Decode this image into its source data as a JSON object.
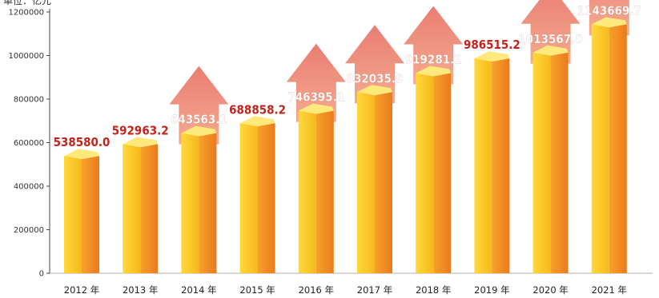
{
  "unit_label": "单位：亿元",
  "colors": {
    "axis": "#444444",
    "bar_front_light": "#ffd83a",
    "bar_front_dark": "#f6b81c",
    "bar_side_light": "#f7a12a",
    "bar_side_dark": "#ea7b1e",
    "bar_top": "#ffe97a",
    "arrow_light": "#f29c7c",
    "arrow_dark": "#e6665a",
    "label_plain": "#c4231b",
    "label_on_arrow": "#ffffff"
  },
  "chart_data": {
    "type": "bar",
    "title": "",
    "xlabel": "",
    "ylabel": "单位：亿元",
    "categories": [
      "2012 年",
      "2013 年",
      "2014 年",
      "2015 年",
      "2016 年",
      "2017 年",
      "2018 年",
      "2019 年",
      "2020 年",
      "2021 年"
    ],
    "values": [
      538580.0,
      592963.2,
      643563.1,
      688858.2,
      746395.1,
      832035.9,
      919281.1,
      986515.2,
      1013567.0,
      1143669.7
    ],
    "value_labels": [
      "538580.0",
      "592963.2",
      "643563.1",
      "688858.2",
      "746395.1",
      "832035.9",
      "919281.1",
      "986515.2",
      "1013567.0",
      "1143669.7"
    ],
    "label_on_arrow": [
      false,
      false,
      true,
      false,
      true,
      true,
      true,
      false,
      true,
      true
    ],
    "ylim": [
      0,
      1200000
    ],
    "yticks": [
      0,
      200000,
      400000,
      600000,
      800000,
      1000000,
      1200000
    ],
    "ytick_labels": [
      "0",
      "200000",
      "400000",
      "600000",
      "800000",
      "1000000",
      "1200000"
    ],
    "grid": false,
    "legend": "none"
  }
}
